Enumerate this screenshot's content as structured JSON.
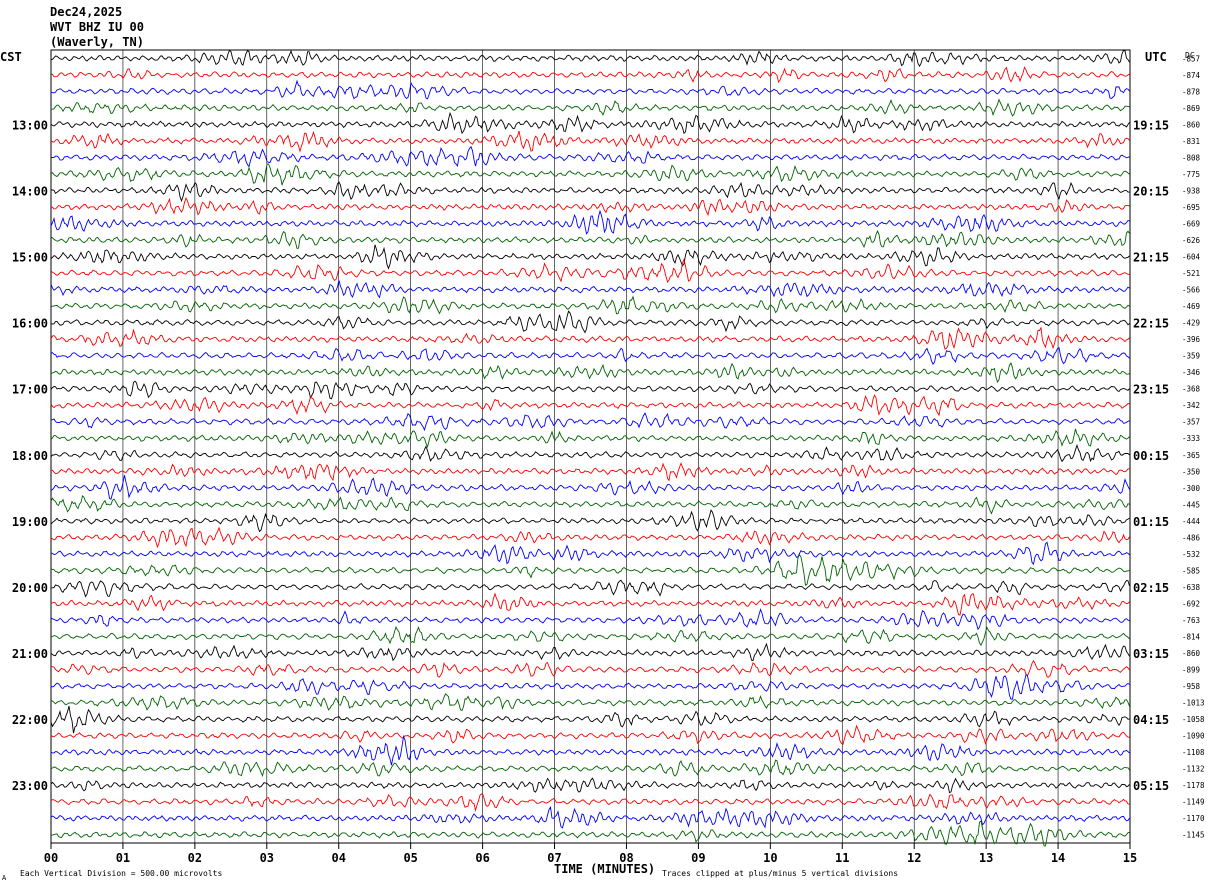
{
  "header": {
    "date": "Dec24,2025",
    "station": "WVT BHZ IU 00",
    "location": "(Waverly, TN)"
  },
  "left_zone": "CST",
  "right_zone": "UTC",
  "dc_label": "DC",
  "footer": {
    "scale_note": "Each Vertical Division =  500.00 microvolts",
    "clip_note": "Traces clipped at plus/minus 5 vertical divisions",
    "corner_mark": "A"
  },
  "colors": {
    "cycle": [
      "#000000",
      "#ff0000",
      "#0000ff",
      "#006400"
    ],
    "grid": "#000000",
    "text": "#000000"
  },
  "chart_data": {
    "type": "line",
    "title": "Dec24,2025",
    "xlabel": "TIME (MINUTES)",
    "ylabel": "",
    "xlim": [
      0,
      15
    ],
    "x_ticks": [
      "00",
      "01",
      "02",
      "03",
      "04",
      "05",
      "06",
      "07",
      "08",
      "09",
      "10",
      "11",
      "12",
      "13",
      "14",
      "15"
    ],
    "left_time_labels": [
      "13:00",
      "14:00",
      "15:00",
      "16:00",
      "17:00",
      "18:00",
      "19:00",
      "20:00",
      "21:00",
      "22:00",
      "23:00"
    ],
    "right_time_labels": [
      "19:15",
      "20:15",
      "21:15",
      "22:15",
      "23:15",
      "00:15",
      "01:15",
      "02:15",
      "03:15",
      "04:15",
      "05:15"
    ],
    "trace_count": 48,
    "traces_per_hour": 4,
    "minutes_per_trace": 15,
    "dc_offsets": [
      "-857",
      "-874",
      "-878",
      "-869",
      "-860",
      "-831",
      "-808",
      "-775",
      "-938",
      "-695",
      "-669",
      "-626",
      "-604",
      "-521",
      "-566",
      "-469",
      "-429",
      "-396",
      "-359",
      "-346",
      "-368",
      "-342",
      "-357",
      "-333",
      "-365",
      "-350",
      "-300",
      "-445",
      "-444",
      "-486",
      "-532",
      "-585",
      "-638",
      "-692",
      "-763",
      "-814",
      "-860",
      "-899",
      "-958",
      "-1013",
      "-1058",
      "-1090",
      "-1108",
      "-1132",
      "-1178",
      "-1149",
      "-1170",
      "-1145"
    ],
    "amplitude_note": "traces clipped at plus/minus 5 vertical divisions"
  }
}
